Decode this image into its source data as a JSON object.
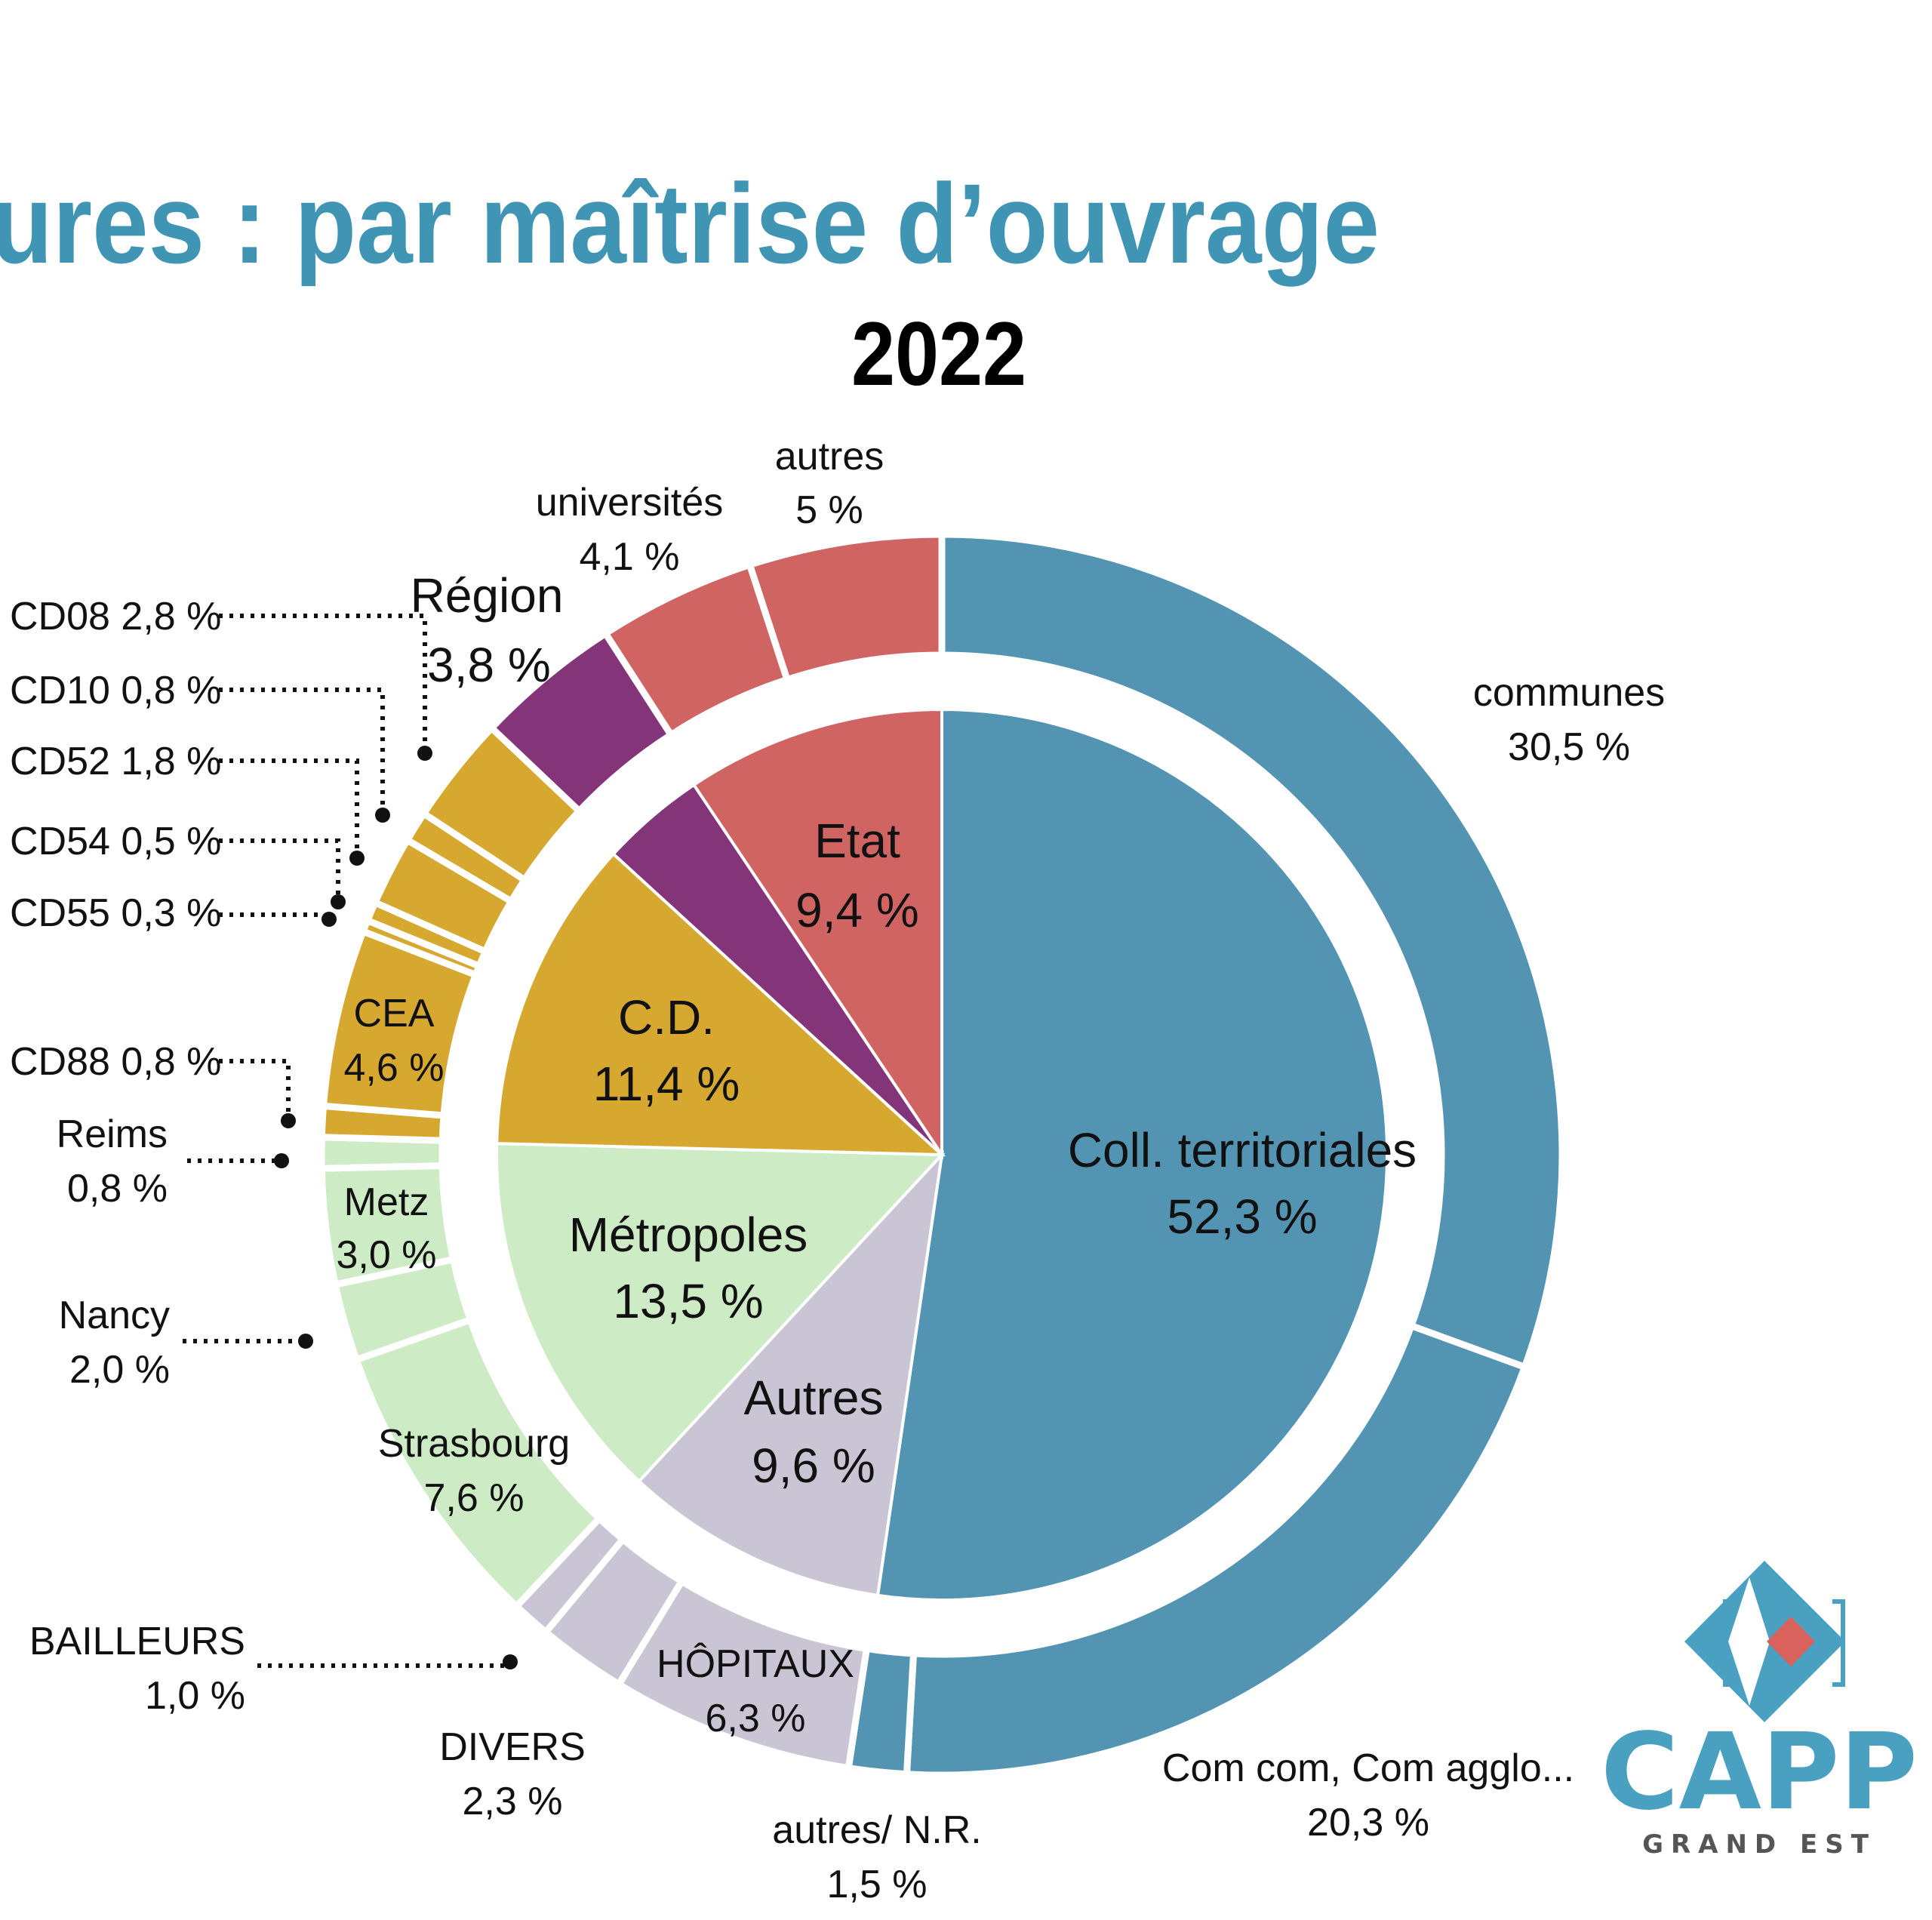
{
  "header": {
    "title": "ures :   par maîtrise d’ouvrage",
    "year": "2022"
  },
  "colors": {
    "title": "#4095b4",
    "coll_territoriales": "#5294b2",
    "autres": "#c9c5d4",
    "metropoles": "#cdebc5",
    "cd": "#d6a830",
    "region": "#84357a",
    "etat": "#cf6462",
    "logo_blue": "#4aa0c0",
    "logo_red": "#d9625c"
  },
  "chart_data": {
    "type": "pie",
    "subtype": "nested-donut",
    "title": "par maîtrise d’ouvrage — 2022",
    "inner": [
      {
        "name": "Coll. territoriales",
        "label": "Coll. territoriales",
        "value_label": "52,3 %",
        "value": 52.3,
        "color": "#5294b2"
      },
      {
        "name": "Autres",
        "label": "Autres",
        "value_label": "9,6 %",
        "value": 9.6,
        "color": "#c9c5d4"
      },
      {
        "name": "Métropoles",
        "label": "Métropoles",
        "value_label": "13,5 %",
        "value": 13.5,
        "color": "#cdebc5"
      },
      {
        "name": "C.D.",
        "label": "C.D.",
        "value_label": "11,4 %",
        "value": 11.4,
        "color": "#d6a830"
      },
      {
        "name": "Région",
        "label": "",
        "value_label": "",
        "value": 3.8,
        "color": "#84357a"
      },
      {
        "name": "Etat",
        "label": "Etat",
        "value_label": "9,4 %",
        "value": 9.4,
        "color": "#cf6462"
      }
    ],
    "outer": [
      {
        "name": "communes",
        "label": "communes",
        "value_label": "30,5 %",
        "value": 30.5,
        "color": "#5294b2"
      },
      {
        "name": "Com com, Com agglo...",
        "label": "Com com, Com agglo...",
        "value_label": "20,3 %",
        "value": 20.3,
        "color": "#5294b2"
      },
      {
        "name": "autres/ N.R.",
        "label": "autres/ N.R.",
        "value_label": "1,5 %",
        "value": 1.5,
        "color": "#5294b2"
      },
      {
        "name": "HÔPITAUX",
        "label": "HÔPITAUX",
        "value_label": "6,3 %",
        "value": 6.3,
        "color": "#c9c5d4"
      },
      {
        "name": "DIVERS",
        "label": "DIVERS",
        "value_label": "2,3 %",
        "value": 2.3,
        "color": "#c9c5d4"
      },
      {
        "name": "BAILLEURS",
        "label": "BAILLEURS",
        "value_label": "1,0 %",
        "value": 1.0,
        "color": "#c9c5d4"
      },
      {
        "name": "Strasbourg",
        "label": "Strasbourg",
        "value_label": "7,6 %",
        "value": 7.6,
        "color": "#cdebc5"
      },
      {
        "name": "Nancy",
        "label": "Nancy",
        "value_label": "2,0 %",
        "value": 2.0,
        "color": "#cdebc5"
      },
      {
        "name": "Metz",
        "label": "Metz",
        "value_label": "3,0 %",
        "value": 3.0,
        "color": "#cdebc5"
      },
      {
        "name": "Reims",
        "label": "Reims",
        "value_label": "0,8 %",
        "value": 0.8,
        "color": "#cdebc5"
      },
      {
        "name": "CD88",
        "label": "CD88 0,8 %",
        "value_label": "",
        "value": 0.8,
        "color": "#d6a830"
      },
      {
        "name": "CEA",
        "label": "CEA",
        "value_label": "4,6 %",
        "value": 4.6,
        "color": "#d6a830"
      },
      {
        "name": "CD55",
        "label": "CD55 0,3 %",
        "value_label": "",
        "value": 0.3,
        "color": "#d6a830"
      },
      {
        "name": "CD54",
        "label": "CD54 0,5 %",
        "value_label": "",
        "value": 0.5,
        "color": "#d6a830"
      },
      {
        "name": "CD52",
        "label": "CD52 1,8 %",
        "value_label": "",
        "value": 1.8,
        "color": "#d6a830"
      },
      {
        "name": "CD10",
        "label": "CD10 0,8 %",
        "value_label": "",
        "value": 0.8,
        "color": "#d6a830"
      },
      {
        "name": "CD08",
        "label": "CD08 2,8 %",
        "value_label": "",
        "value": 2.8,
        "color": "#d6a830"
      },
      {
        "name": "Région",
        "label": "Région",
        "value_label": "3,8 %",
        "value": 3.8,
        "color": "#84357a"
      },
      {
        "name": "universités",
        "label": "universités",
        "value_label": "4,1 %",
        "value": 4.1,
        "color": "#cf6462"
      },
      {
        "name": "autres",
        "label": "autres",
        "value_label": "5 %",
        "value": 5.0,
        "color": "#cf6462"
      }
    ],
    "start": "top, clockwise",
    "legend": "none (direct labels)"
  },
  "logo": {
    "name": "CAPP",
    "subtitle": "GRAND EST"
  }
}
